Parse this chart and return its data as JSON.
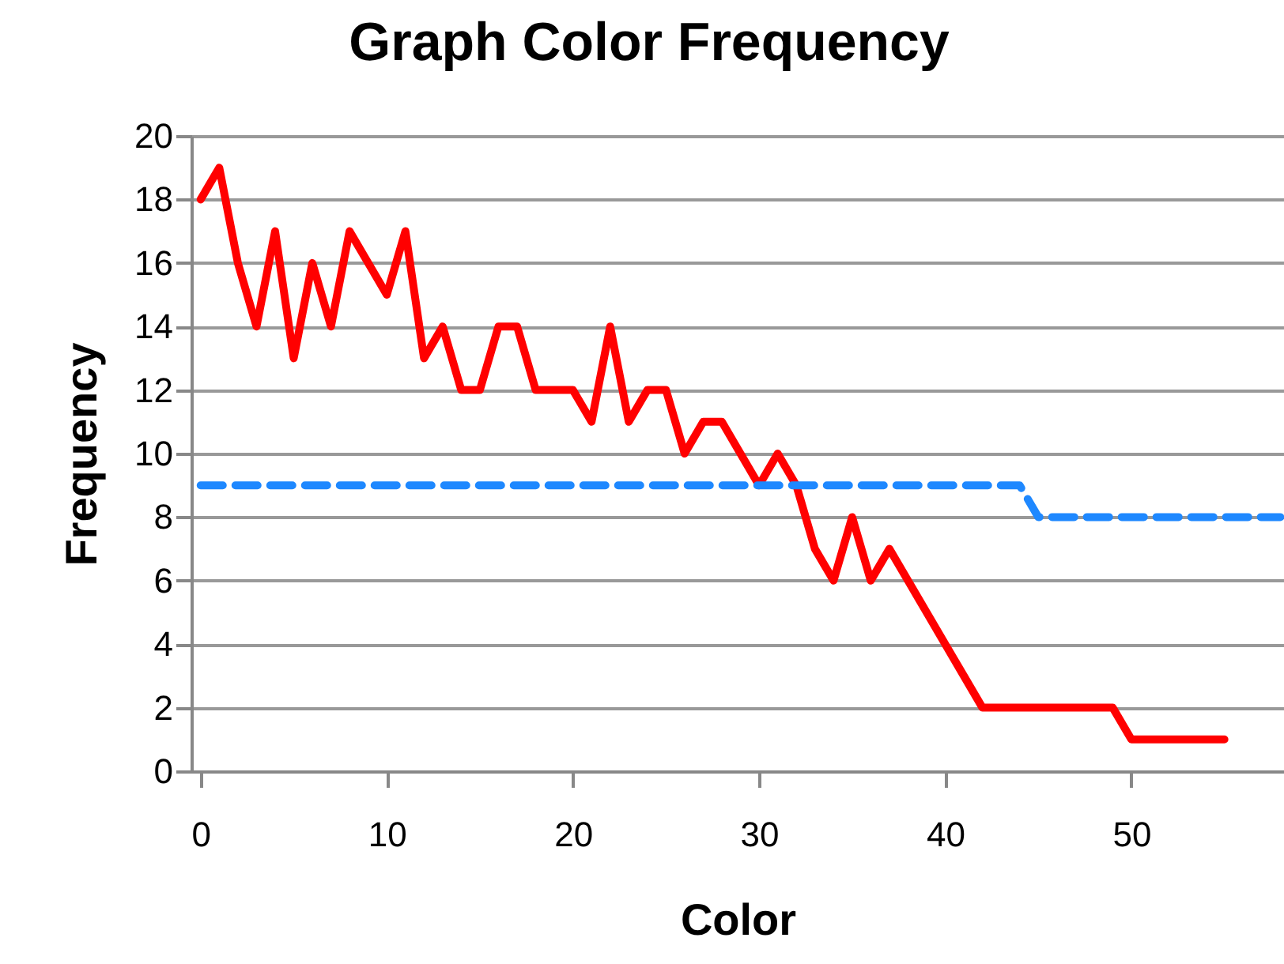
{
  "chart_data": {
    "type": "line",
    "title": "Graph Color Frequency",
    "xlabel": "Color",
    "ylabel": "Frequency",
    "xlim": [
      -0.5,
      58.2
    ],
    "xticks": [
      0,
      10,
      20,
      30,
      40,
      50
    ],
    "ylim": [
      0,
      20
    ],
    "yticks": [
      0,
      2,
      4,
      6,
      8,
      10,
      12,
      14,
      16,
      18,
      20
    ],
    "grid": "y",
    "marker": "none",
    "series": [
      {
        "color": "#ff0000",
        "line_style": "solid",
        "x": [
          0,
          1,
          2,
          3,
          4,
          5,
          6,
          7,
          8,
          9,
          10,
          11,
          12,
          13,
          14,
          15,
          16,
          17,
          18,
          19,
          20,
          21,
          22,
          23,
          24,
          25,
          26,
          27,
          28,
          29,
          30,
          31,
          32,
          33,
          34,
          35,
          36,
          37,
          38,
          39,
          40,
          41,
          42,
          43,
          44,
          45,
          46,
          47,
          48,
          49,
          50,
          51,
          52,
          53,
          54,
          55
        ],
        "values": [
          18,
          19,
          16,
          14,
          17,
          13,
          16,
          14,
          17,
          16,
          15,
          17,
          13,
          14,
          12,
          12,
          14,
          14,
          12,
          12,
          12,
          11,
          14,
          11,
          12,
          12,
          10,
          11,
          11,
          10,
          9,
          10,
          9,
          7,
          6,
          8,
          6,
          7,
          6,
          5,
          4,
          3,
          2,
          2,
          2,
          2,
          2,
          2,
          2,
          2,
          1,
          1,
          1,
          1,
          1,
          1
        ]
      },
      {
        "color": "#1e88ff",
        "line_style": "dashed",
        "x": [
          0,
          44,
          45,
          58
        ],
        "values": [
          9,
          9,
          8,
          8
        ]
      }
    ]
  }
}
